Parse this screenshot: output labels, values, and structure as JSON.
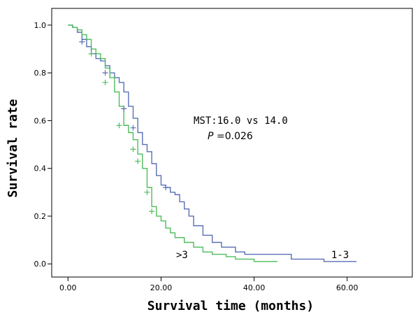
{
  "chart_data": {
    "type": "line",
    "xlabel": "Survival time (months)",
    "ylabel": "Survival rate",
    "xlim": [
      -3.5,
      74
    ],
    "ylim": [
      -0.055,
      1.07
    ],
    "x_ticks": [
      0,
      20,
      40,
      60
    ],
    "x_tick_labels": [
      "0.00",
      "20.00",
      "40.00",
      "60.00"
    ],
    "y_ticks": [
      0,
      0.2,
      0.4,
      0.6,
      0.8,
      1.0
    ],
    "y_tick_labels": [
      "0.0",
      "0.2",
      "0.4",
      "0.6",
      "0.8",
      "1.0"
    ],
    "grid": false,
    "annotation": {
      "mst": "MST:16.0 vs 14.0",
      "p_label": "P",
      "p_value": "=0.026"
    },
    "series": [
      {
        "name": "1-3",
        "color": "#5a6fb5",
        "points": [
          [
            0,
            1.0
          ],
          [
            1,
            0.99
          ],
          [
            2,
            0.97
          ],
          [
            3,
            0.94
          ],
          [
            4,
            0.91
          ],
          [
            5,
            0.88
          ],
          [
            6,
            0.86
          ],
          [
            7,
            0.85
          ],
          [
            8,
            0.83
          ],
          [
            9,
            0.8
          ],
          [
            10,
            0.78
          ],
          [
            11,
            0.76
          ],
          [
            12,
            0.72
          ],
          [
            13,
            0.66
          ],
          [
            14,
            0.61
          ],
          [
            15,
            0.55
          ],
          [
            16,
            0.5
          ],
          [
            17,
            0.47
          ],
          [
            18,
            0.42
          ],
          [
            19,
            0.37
          ],
          [
            20,
            0.33
          ],
          [
            21,
            0.32
          ],
          [
            22,
            0.3
          ],
          [
            23,
            0.29
          ],
          [
            24,
            0.26
          ],
          [
            25,
            0.23
          ],
          [
            26,
            0.2
          ],
          [
            27,
            0.16
          ],
          [
            29,
            0.12
          ],
          [
            31,
            0.09
          ],
          [
            33,
            0.07
          ],
          [
            36,
            0.05
          ],
          [
            38,
            0.04
          ],
          [
            48,
            0.02
          ],
          [
            55,
            0.01
          ],
          [
            62,
            0.01
          ]
        ],
        "censored": [
          [
            3,
            0.93
          ],
          [
            8,
            0.8
          ],
          [
            12,
            0.65
          ],
          [
            14,
            0.57
          ],
          [
            21,
            0.32
          ]
        ]
      },
      {
        "name": ">3",
        "color": "#4dbd5c",
        "points": [
          [
            0,
            1.0
          ],
          [
            1,
            0.99
          ],
          [
            2,
            0.98
          ],
          [
            3,
            0.96
          ],
          [
            4,
            0.94
          ],
          [
            5,
            0.9
          ],
          [
            6,
            0.88
          ],
          [
            7,
            0.86
          ],
          [
            8,
            0.82
          ],
          [
            9,
            0.78
          ],
          [
            10,
            0.72
          ],
          [
            11,
            0.66
          ],
          [
            12,
            0.58
          ],
          [
            13,
            0.55
          ],
          [
            14,
            0.52
          ],
          [
            15,
            0.46
          ],
          [
            16,
            0.4
          ],
          [
            17,
            0.32
          ],
          [
            18,
            0.24
          ],
          [
            19,
            0.2
          ],
          [
            20,
            0.18
          ],
          [
            21,
            0.15
          ],
          [
            22,
            0.13
          ],
          [
            23,
            0.11
          ],
          [
            25,
            0.09
          ],
          [
            27,
            0.07
          ],
          [
            29,
            0.05
          ],
          [
            31,
            0.04
          ],
          [
            34,
            0.03
          ],
          [
            36,
            0.02
          ],
          [
            40,
            0.01
          ],
          [
            45,
            0.01
          ]
        ],
        "censored": [
          [
            5,
            0.88
          ],
          [
            8,
            0.76
          ],
          [
            11,
            0.58
          ],
          [
            14,
            0.48
          ],
          [
            15,
            0.43
          ],
          [
            17,
            0.3
          ],
          [
            18,
            0.22
          ]
        ]
      }
    ]
  }
}
